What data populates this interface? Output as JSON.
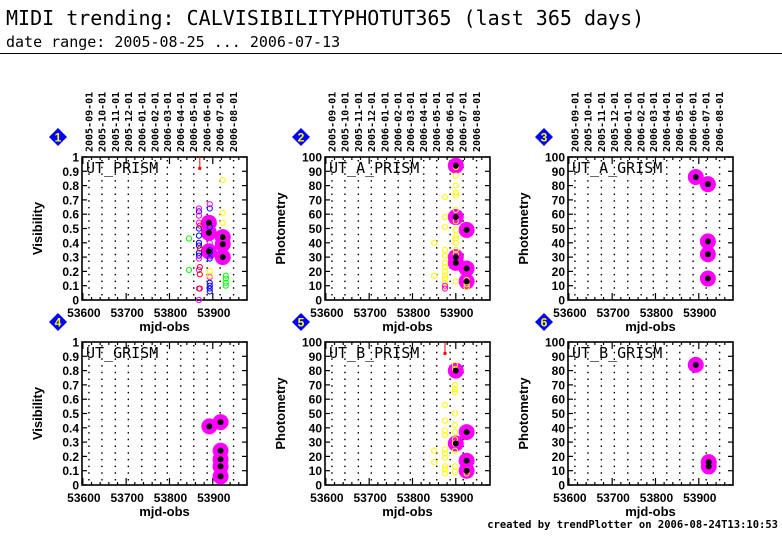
{
  "header": {
    "title": "MIDI trending: CALVISIBILITYPHOTUT365 (last 365 days)",
    "subtitle": "date range: 2005-08-25 ... 2006-07-13"
  },
  "footer": "created by trendPlotter on 2006-08-24T13:10:53",
  "colors": {
    "highlight": "#ff00ff",
    "filled": "#000000",
    "red": "#ff0000",
    "blue": "#0000ff",
    "magenta": "#ff00ff",
    "yellow": "#ffff00",
    "green": "#00ff00",
    "badge": "#0000ff",
    "badge_text": "#ffff00"
  },
  "chart_data": [
    {
      "type": "scatter",
      "panel": "1",
      "title": "UT_PRISM",
      "xlabel": "mjd-obs",
      "ylabel": "Visibility",
      "xlim": [
        53598,
        53979
      ],
      "ylim": [
        0,
        1
      ],
      "xticks": [
        53600,
        53700,
        53800,
        53900
      ],
      "yticks": [
        0,
        0.1,
        0.2,
        0.3,
        0.4,
        0.5,
        0.6,
        0.7,
        0.8,
        0.9,
        1
      ],
      "date_ticks": [
        "2005-09-01",
        "2005-10-01",
        "2005-11-01",
        "2005-12-01",
        "2006-01-01",
        "2006-02-01",
        "2006-03-01",
        "2006-04-01",
        "2006-05-01",
        "2006-06-01",
        "2006-07-01",
        "2006-08-01"
      ],
      "date_mjd": [
        53614,
        53644,
        53675,
        53705,
        53736,
        53767,
        53795,
        53826,
        53856,
        53887,
        53917,
        53948
      ],
      "filled": {
        "x": [
          53891,
          53891,
          53891,
          53923,
          53923,
          53923
        ],
        "y": [
          0.54,
          0.47,
          0.34,
          0.44,
          0.39,
          0.3
        ]
      },
      "open": [
        {
          "color": "blue",
          "x": [
            53868,
            53868,
            53868,
            53868,
            53868,
            53868,
            53868,
            53893,
            53893,
            53893,
            53893,
            53893,
            53893,
            53893,
            53893,
            53893
          ],
          "y": [
            0.62,
            0.5,
            0.45,
            0.4,
            0.38,
            0.33,
            0.31,
            0.64,
            0.51,
            0.35,
            0.33,
            0.29,
            0.12,
            0.1,
            0.08,
            0.06
          ]
        },
        {
          "color": "magenta",
          "x": [
            53868,
            53868,
            53868,
            53868,
            53868,
            53868,
            53868,
            53893,
            53893,
            53893
          ],
          "y": [
            0.64,
            0.59,
            0.54,
            0.29,
            0.21,
            0.08,
            0.0,
            0.67,
            0.4,
            0.16
          ]
        },
        {
          "color": "red",
          "x": [
            53870,
            53870,
            53870,
            53870,
            53870
          ],
          "y": [
            0.52,
            0.36,
            0.23,
            0.18,
            0.08
          ]
        },
        {
          "color": "yellow",
          "x": [
            53893,
            53893,
            53923,
            53923,
            53923,
            53923
          ],
          "y": [
            0.2,
            0.17,
            0.84,
            0.61,
            0.54,
            0.44
          ]
        },
        {
          "color": "green",
          "x": [
            53845,
            53845,
            53930,
            53930,
            53930,
            53930
          ],
          "y": [
            0.43,
            0.21,
            0.17,
            0.15,
            0.12,
            0.1
          ]
        }
      ],
      "outlier": {
        "x": 53870,
        "y": 0.92
      }
    },
    {
      "type": "scatter",
      "panel": "2",
      "title": "UT_A_PRISM",
      "xlabel": "mjd-obs",
      "ylabel": "Photometry",
      "xlim": [
        53598,
        53979
      ],
      "ylim": [
        0,
        100
      ],
      "xticks": [
        53600,
        53700,
        53800,
        53900
      ],
      "yticks": [
        0,
        10,
        20,
        30,
        40,
        50,
        60,
        70,
        80,
        90,
        100
      ],
      "date_ticks": [
        "2005-09-01",
        "2005-10-01",
        "2005-11-01",
        "2005-12-01",
        "2006-01-01",
        "2006-02-01",
        "2006-03-01",
        "2006-04-01",
        "2006-05-01",
        "2006-06-01",
        "2006-07-01",
        "2006-08-01"
      ],
      "date_mjd": [
        53614,
        53644,
        53675,
        53705,
        53736,
        53767,
        53795,
        53826,
        53856,
        53887,
        53917,
        53948
      ],
      "filled": {
        "x": [
          53900,
          53900,
          53900,
          53900,
          53925,
          53925,
          53925
        ],
        "y": [
          94,
          58,
          30,
          26,
          49,
          22,
          13
        ]
      },
      "open": [
        {
          "color": "yellow",
          "x": [
            53850,
            53850,
            53875,
            53875,
            53875,
            53875,
            53875,
            53875,
            53875,
            53875,
            53875,
            53875,
            53875,
            53875,
            53900,
            53900,
            53900,
            53900,
            53900,
            53900,
            53900,
            53900,
            53900,
            53900,
            53900,
            53900,
            53900,
            53900,
            53925,
            53925,
            53925
          ],
          "y": [
            40,
            17,
            72,
            58,
            51,
            35,
            31,
            26,
            23,
            20,
            17,
            15,
            12,
            9,
            93,
            87,
            80,
            75,
            73,
            63,
            55,
            49,
            45,
            43,
            40,
            35,
            32,
            13,
            14,
            11,
            9
          ]
        },
        {
          "color": "magenta",
          "x": [
            53875,
            53875
          ],
          "y": [
            10,
            8
          ]
        }
      ]
    },
    {
      "type": "scatter",
      "panel": "3",
      "title": "UT_A_GRISM",
      "xlabel": "mjd-obs",
      "ylabel": "Photometry",
      "xlim": [
        53598,
        53979
      ],
      "ylim": [
        0,
        100
      ],
      "xticks": [
        53600,
        53700,
        53800,
        53900
      ],
      "yticks": [
        0,
        10,
        20,
        30,
        40,
        50,
        60,
        70,
        80,
        90,
        100
      ],
      "date_ticks": [
        "2005-09-01",
        "2005-10-01",
        "2005-11-01",
        "2005-12-01",
        "2006-01-01",
        "2006-02-01",
        "2006-03-01",
        "2006-04-01",
        "2006-05-01",
        "2006-06-01",
        "2006-07-01",
        "2006-08-01"
      ],
      "date_mjd": [
        53614,
        53644,
        53675,
        53705,
        53736,
        53767,
        53795,
        53826,
        53856,
        53887,
        53917,
        53948
      ],
      "filled": {
        "x": [
          53893,
          53921,
          53921,
          53921,
          53921
        ],
        "y": [
          86,
          81,
          41,
          32,
          15
        ]
      },
      "open": []
    },
    {
      "type": "scatter",
      "panel": "4",
      "title": "UT_GRISM",
      "xlabel": "mjd-obs",
      "ylabel": "Visibility",
      "xlim": [
        53598,
        53979
      ],
      "ylim": [
        0,
        1
      ],
      "xticks": [
        53600,
        53700,
        53800,
        53900
      ],
      "yticks": [
        0,
        0.1,
        0.2,
        0.3,
        0.4,
        0.5,
        0.6,
        0.7,
        0.8,
        0.9,
        1
      ],
      "date_mjd": [
        53614,
        53644,
        53675,
        53705,
        53736,
        53767,
        53795,
        53826,
        53856,
        53887,
        53917,
        53948
      ],
      "filled": {
        "x": [
          53892,
          53918,
          53918,
          53918,
          53918,
          53918
        ],
        "y": [
          0.41,
          0.44,
          0.24,
          0.18,
          0.13,
          0.06
        ]
      },
      "open": []
    },
    {
      "type": "scatter",
      "panel": "5",
      "title": "UT_B_PRISM",
      "xlabel": "mjd-obs",
      "ylabel": "Photometry",
      "xlim": [
        53598,
        53979
      ],
      "ylim": [
        0,
        100
      ],
      "xticks": [
        53600,
        53700,
        53800,
        53900
      ],
      "yticks": [
        0,
        10,
        20,
        30,
        40,
        50,
        60,
        70,
        80,
        90,
        100
      ],
      "date_mjd": [
        53614,
        53644,
        53675,
        53705,
        53736,
        53767,
        53795,
        53826,
        53856,
        53887,
        53917,
        53948
      ],
      "filled": {
        "x": [
          53900,
          53900,
          53925,
          53925,
          53925
        ],
        "y": [
          80,
          29,
          37,
          17,
          10
        ]
      },
      "open": [
        {
          "color": "yellow",
          "x": [
            53850,
            53850,
            53875,
            53875,
            53875,
            53875,
            53875,
            53875,
            53875,
            53875,
            53875,
            53875,
            53898,
            53898,
            53898,
            53898,
            53898,
            53898,
            53898,
            53898,
            53898,
            53898,
            53898,
            53898,
            53898,
            53925,
            53925
          ],
          "y": [
            24,
            16,
            56,
            45,
            38,
            35,
            25,
            22,
            19,
            13,
            11,
            8,
            84,
            81,
            70,
            67,
            65,
            50,
            42,
            37,
            32,
            29,
            24,
            13,
            9,
            10,
            8
          ]
        }
      ],
      "outlier": {
        "x": 53875,
        "y": 92
      }
    },
    {
      "type": "scatter",
      "panel": "6",
      "title": "UT_B_GRISM",
      "xlabel": "mjd-obs",
      "ylabel": "Photometry",
      "xlim": [
        53598,
        53979
      ],
      "ylim": [
        0,
        100
      ],
      "xticks": [
        53600,
        53700,
        53800,
        53900
      ],
      "yticks": [
        0,
        10,
        20,
        30,
        40,
        50,
        60,
        70,
        80,
        90,
        100
      ],
      "date_mjd": [
        53614,
        53644,
        53675,
        53705,
        53736,
        53767,
        53795,
        53826,
        53856,
        53887,
        53917,
        53948
      ],
      "filled": {
        "x": [
          53893,
          53923,
          53923
        ],
        "y": [
          84,
          16,
          13
        ]
      },
      "open": []
    }
  ]
}
